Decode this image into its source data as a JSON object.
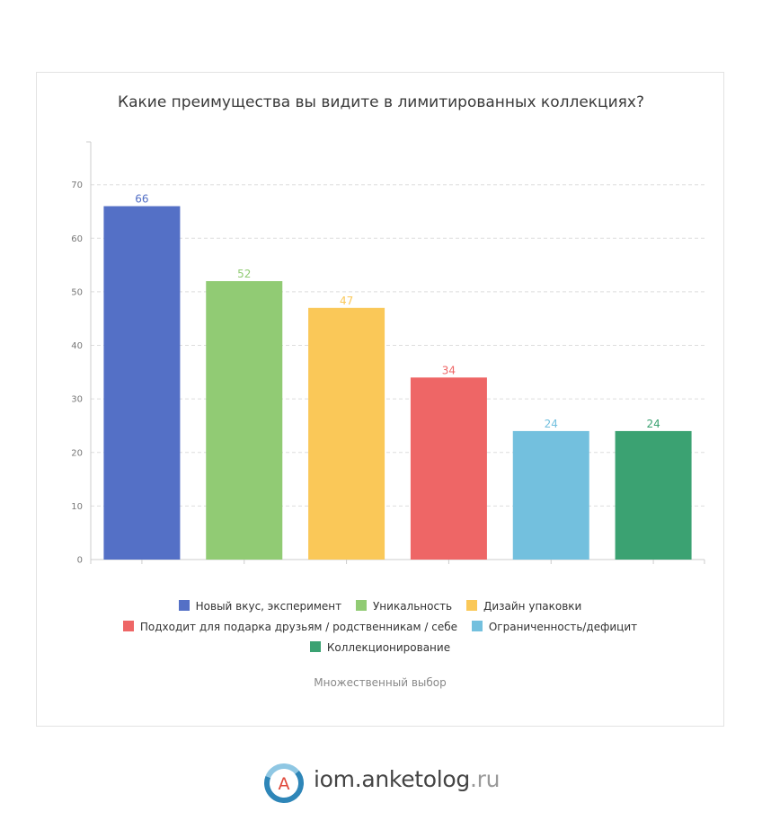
{
  "chart_data": {
    "type": "bar",
    "title": "Какие преимущества вы видите в лимитированных коллекциях?",
    "categories": [
      "Новый вкус, эксперимент",
      "Уникальность",
      "Дизайн упаковки",
      "Подходит для подарка друзьям / родственникам / себе",
      "Ограниченность/дефицит",
      "Коллекционирование"
    ],
    "values": [
      66,
      52,
      47,
      34,
      24,
      24
    ],
    "colors": [
      "#5470c6",
      "#91cb74",
      "#fac858",
      "#ee6666",
      "#73c0de",
      "#3ba272"
    ],
    "ylim": [
      0,
      78
    ],
    "yticks": [
      0,
      10,
      20,
      30,
      40,
      50,
      60,
      70
    ],
    "grid": true,
    "legend_position": "bottom",
    "note": "Множественный выбор"
  },
  "brand": {
    "logo_letter": "A",
    "name": "iom.anketolog",
    "tld": ".ru"
  }
}
